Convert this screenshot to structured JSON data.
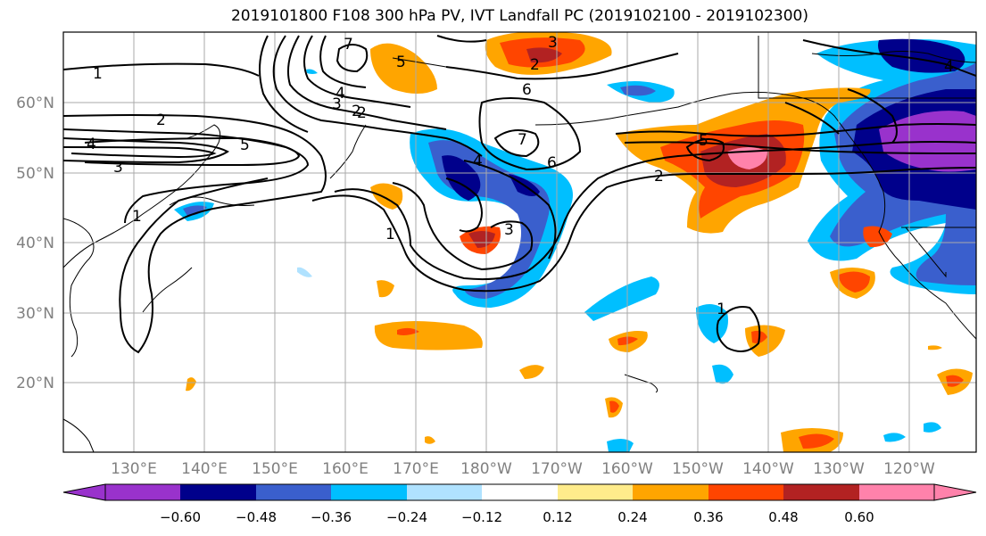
{
  "title": "2019101800 F108 300 hPa PV, IVT Landfall PC (2019102100 - 2019102300)",
  "lat_labels": [
    "60°N",
    "50°N",
    "40°N",
    "30°N",
    "20°N"
  ],
  "lon_labels": [
    "130°E",
    "140°E",
    "150°E",
    "160°E",
    "170°E",
    "180°W",
    "170°W",
    "160°W",
    "150°W",
    "140°W",
    "130°W",
    "120°W"
  ],
  "colorbar": {
    "colors": [
      "#9932cc",
      "#00008b",
      "#3a5fcd",
      "#00bfff",
      "#b0e2ff",
      "#ffffff",
      "#ffec8b",
      "#ffa500",
      "#ff4500",
      "#b22222",
      "#ff82ab"
    ],
    "tick_labels": [
      "−0.60",
      "−0.48",
      "−0.36",
      "−0.24",
      "−0.12",
      "0.12",
      "0.24",
      "0.36",
      "0.48",
      "0.60"
    ],
    "extend": "both"
  },
  "contour_labels": [
    "1",
    "2",
    "3",
    "4",
    "5",
    "6",
    "7",
    "1",
    "2",
    "3",
    "4",
    "3",
    "2",
    "1",
    "1",
    "7",
    "6",
    "5",
    "3",
    "5",
    "2",
    "4",
    "4",
    "2",
    "1",
    "3",
    "2",
    "1"
  ]
}
